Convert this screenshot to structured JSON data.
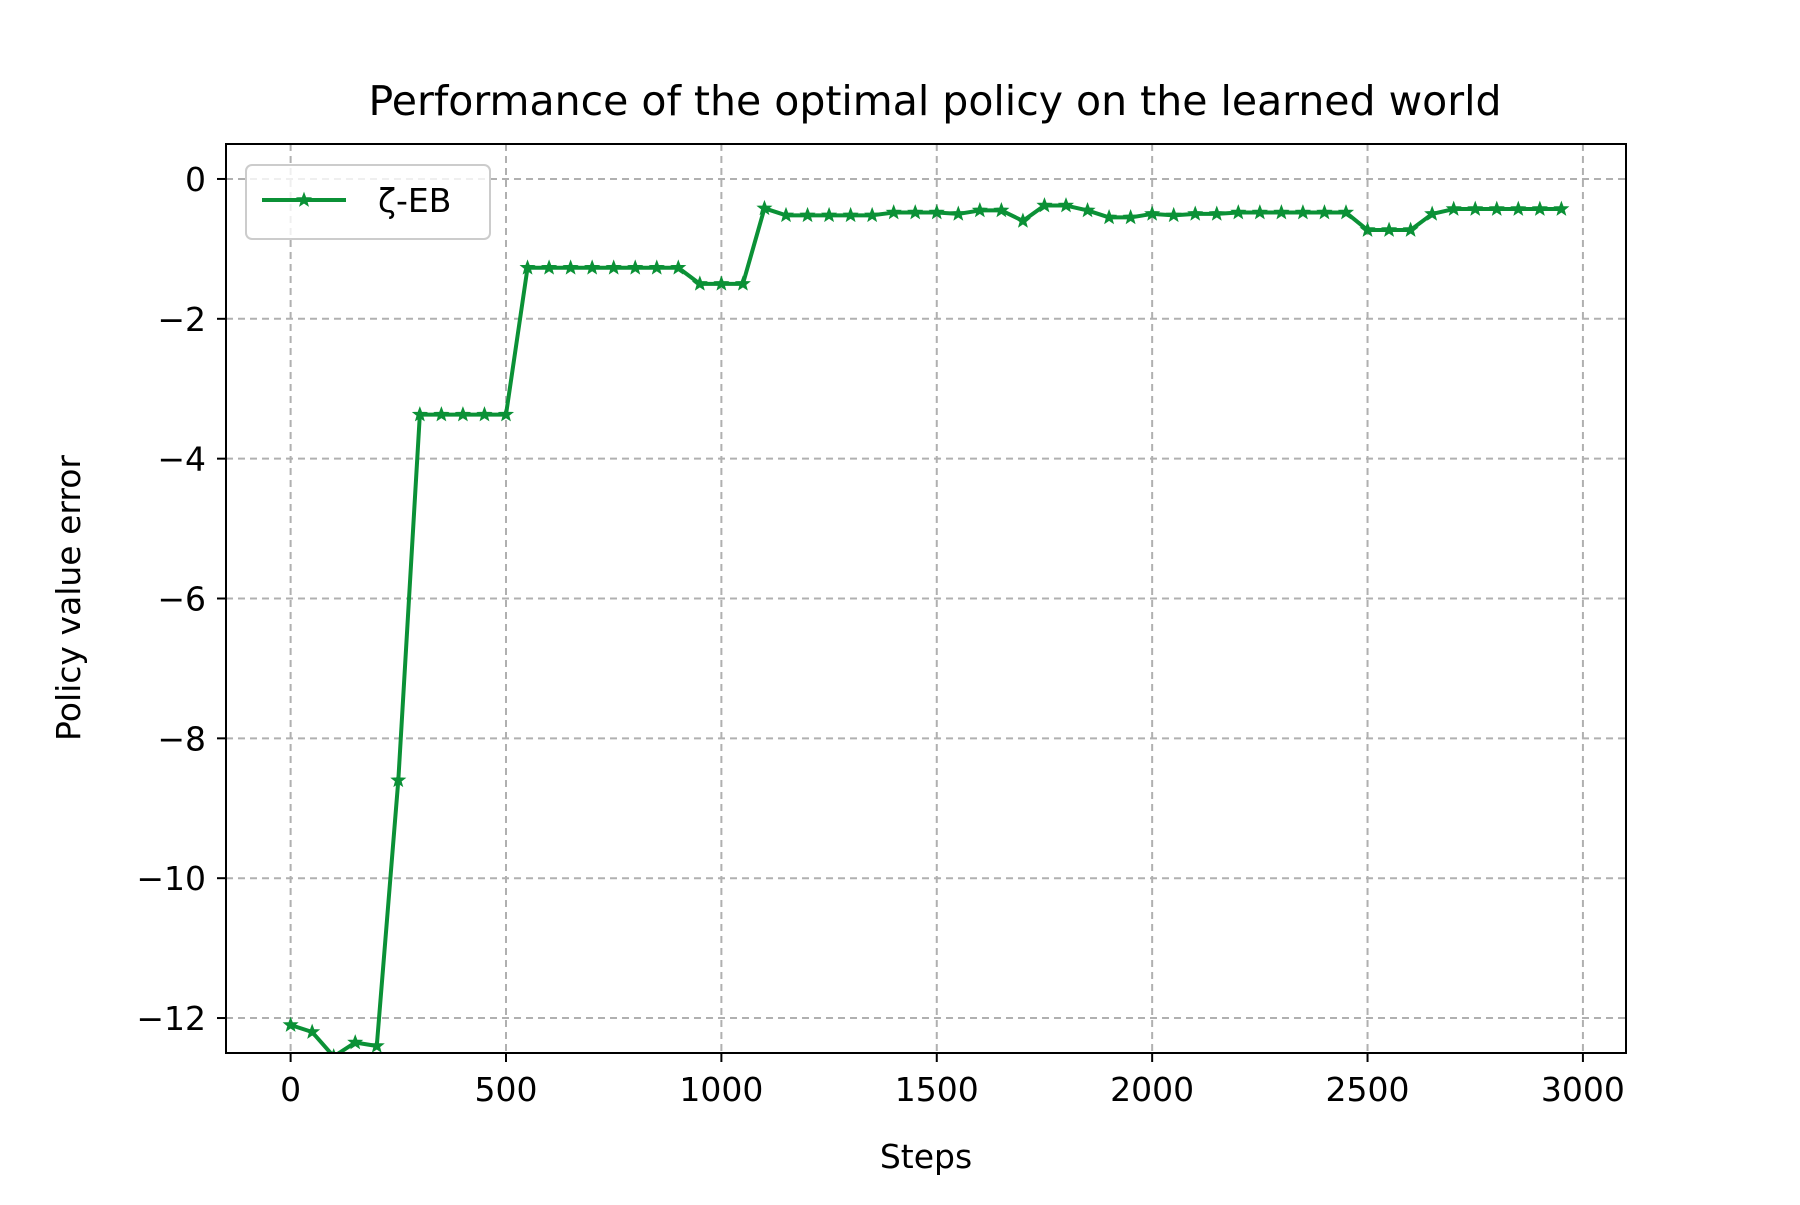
{
  "chart_data": {
    "type": "line",
    "title": "Performance of the optimal policy on the learned world",
    "xlabel": "Steps",
    "ylabel": "Policy value error",
    "xlim": [
      -150,
      3100
    ],
    "ylim": [
      -12.5,
      0.5
    ],
    "xticks": [
      0,
      500,
      1000,
      1500,
      2000,
      2500,
      3000
    ],
    "xtick_labels": [
      "0",
      "500",
      "1000",
      "1500",
      "2000",
      "2500",
      "3000"
    ],
    "yticks": [
      0,
      -2,
      -4,
      -6,
      -8,
      -10,
      -12
    ],
    "ytick_labels": [
      "0",
      "−2",
      "−4",
      "−6",
      "−8",
      "−10",
      "−12"
    ],
    "grid": true,
    "legend_position": "upper-left",
    "x": [
      0,
      50,
      100,
      150,
      200,
      250,
      300,
      350,
      400,
      450,
      500,
      550,
      600,
      650,
      700,
      750,
      800,
      850,
      900,
      950,
      1000,
      1050,
      1100,
      1150,
      1200,
      1250,
      1300,
      1350,
      1400,
      1450,
      1500,
      1550,
      1600,
      1650,
      1700,
      1750,
      1800,
      1850,
      1900,
      1950,
      2000,
      2050,
      2100,
      2150,
      2200,
      2250,
      2300,
      2350,
      2400,
      2450,
      2500,
      2550,
      2600,
      2650,
      2700,
      2750,
      2800,
      2850,
      2900,
      2950
    ],
    "series": [
      {
        "name": "ζ-EB",
        "color": "#0b9136",
        "marker": "star",
        "values": [
          -12.1,
          -12.2,
          -12.55,
          -12.35,
          -12.4,
          -8.6,
          -3.37,
          -3.37,
          -3.37,
          -3.37,
          -3.37,
          -1.27,
          -1.27,
          -1.27,
          -1.27,
          -1.27,
          -1.27,
          -1.27,
          -1.27,
          -1.5,
          -1.5,
          -1.5,
          -0.42,
          -0.52,
          -0.52,
          -0.52,
          -0.52,
          -0.52,
          -0.48,
          -0.48,
          -0.48,
          -0.5,
          -0.45,
          -0.45,
          -0.6,
          -0.38,
          -0.38,
          -0.45,
          -0.55,
          -0.55,
          -0.5,
          -0.52,
          -0.5,
          -0.5,
          -0.48,
          -0.48,
          -0.48,
          -0.48,
          -0.48,
          -0.48,
          -0.73,
          -0.73,
          -0.73,
          -0.5,
          -0.43,
          -0.43,
          -0.43,
          -0.43,
          -0.43,
          -0.43
        ]
      }
    ]
  }
}
